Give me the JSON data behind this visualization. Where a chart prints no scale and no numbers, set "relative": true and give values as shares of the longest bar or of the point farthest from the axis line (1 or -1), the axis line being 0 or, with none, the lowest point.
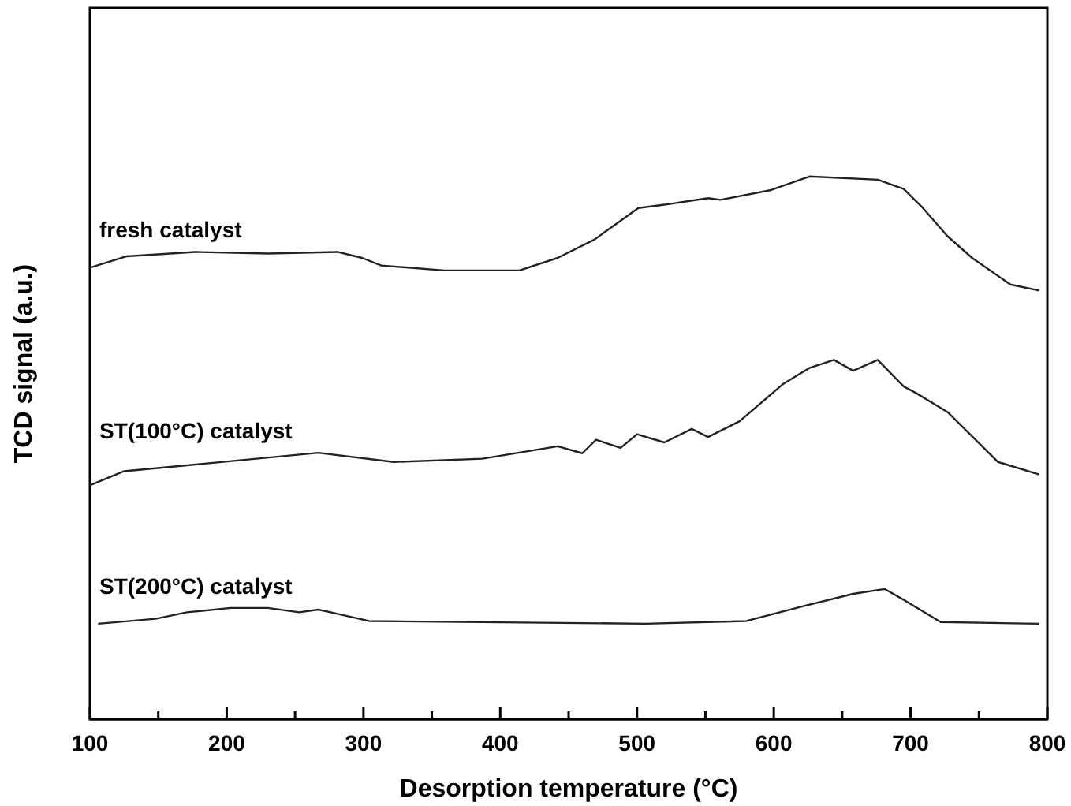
{
  "chart_data": {
    "type": "line",
    "relative": true,
    "xlabel": "Desorption temperature (°C)",
    "ylabel": "TCD signal (a.u.)",
    "xlim": [
      100,
      800
    ],
    "xticks": [
      100,
      {
        "value": 150,
        "label": null
      },
      200,
      {
        "value": 250,
        "label": null
      },
      300,
      {
        "value": 350,
        "label": null
      },
      400,
      {
        "value": 450,
        "label": null
      },
      500,
      {
        "value": 550,
        "label": null
      },
      600,
      {
        "value": 650,
        "label": null
      },
      700,
      {
        "value": 750,
        "label": null
      },
      800
    ],
    "marker": "none",
    "line_style": "solid",
    "grid": false,
    "series": [
      {
        "name": "fresh catalyst",
        "color": "#222222",
        "x": [
          100,
          127,
          177,
          230,
          281,
          299,
          313,
          359,
          414,
          442,
          469,
          501,
          520,
          552,
          561,
          598,
          626,
          676,
          695,
          709,
          727,
          745,
          773,
          794
        ],
        "values": [
          0.832,
          0.853,
          0.861,
          0.858,
          0.861,
          0.85,
          0.836,
          0.827,
          0.827,
          0.85,
          0.884,
          0.942,
          0.948,
          0.96,
          0.957,
          0.975,
          1.0,
          0.994,
          0.977,
          0.942,
          0.89,
          0.85,
          0.801,
          0.79
        ]
      },
      {
        "name": "ST(100°C) catalyst",
        "color": "#222222",
        "x": [
          100,
          125,
          184,
          267,
          322,
          387,
          442,
          460,
          470,
          488,
          500,
          520,
          540,
          552,
          575,
          607,
          626,
          644,
          658,
          676,
          695,
          704,
          727,
          764,
          794
        ],
        "values": [
          0.431,
          0.457,
          0.471,
          0.491,
          0.474,
          0.48,
          0.503,
          0.49,
          0.515,
          0.5,
          0.525,
          0.51,
          0.535,
          0.52,
          0.549,
          0.618,
          0.647,
          0.662,
          0.642,
          0.662,
          0.613,
          0.601,
          0.566,
          0.474,
          0.451
        ]
      },
      {
        "name": "ST(200°C) catalyst",
        "color": "#222222",
        "x": [
          106,
          148,
          171,
          203,
          230,
          253,
          267,
          276,
          304,
          506,
          580,
          621,
          658,
          681,
          695,
          722,
          794
        ],
        "values": [
          0.176,
          0.185,
          0.197,
          0.205,
          0.205,
          0.197,
          0.202,
          0.197,
          0.181,
          0.176,
          0.181,
          0.208,
          0.231,
          0.24,
          0.22,
          0.179,
          0.176
        ]
      }
    ]
  }
}
